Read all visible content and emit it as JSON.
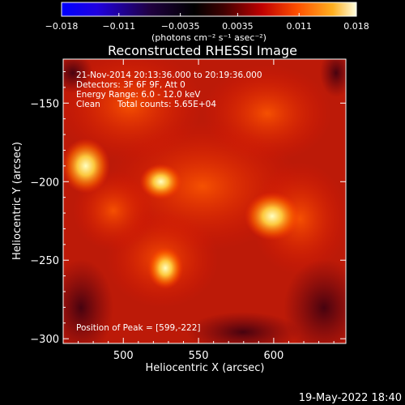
{
  "chart_data": {
    "type": "heatmap",
    "title": "Reconstructed RHESSI Image",
    "xlabel": "Heliocentric X (arcsec)",
    "ylabel": "Heliocentric Y (arcsec)",
    "xlim": [
      460,
      648
    ],
    "ylim": [
      -303,
      -122
    ],
    "x_ticks": [
      "500",
      "550",
      "600"
    ],
    "x_tick_values": [
      500,
      550,
      600
    ],
    "y_ticks": [
      "-150",
      "-200",
      "-250",
      "-300"
    ],
    "y_tick_values": [
      -150,
      -200,
      -250,
      -300
    ],
    "colorbar": {
      "range": [
        -0.018,
        0.018
      ],
      "tick_labels": [
        "-0.018",
        "-0.011",
        "-0.0035",
        "0.0035",
        "0.011",
        "0.018"
      ],
      "tick_values": [
        -0.018,
        -0.011,
        -0.0035,
        0.0035,
        0.011,
        0.018
      ],
      "unit_label": "(photons cm⁻² s⁻¹ asec⁻²)"
    },
    "sources": [
      {
        "x": 599,
        "y": -222,
        "peak": 0.018
      },
      {
        "x": 475,
        "y": -190,
        "peak": 0.016
      },
      {
        "x": 525,
        "y": -200,
        "peak": 0.016
      },
      {
        "x": 528,
        "y": -255,
        "peak": 0.015
      }
    ],
    "peak_position": [
      599,
      -222
    ],
    "annotations": {
      "time": "21-Nov-2014 20:13:36.000 to 20:19:36.000",
      "detectors": "Detectors: 3F 6F 9F, Att 0",
      "energy": "Energy Range: 6.0 - 12.0 keV",
      "clean": "Clean",
      "total_counts": "Total counts: 5.65E+04",
      "peak": "Position of Peak = [599,-222]"
    },
    "grid": false
  },
  "footer": {
    "timestamp": "19-May-2022 18:40"
  }
}
